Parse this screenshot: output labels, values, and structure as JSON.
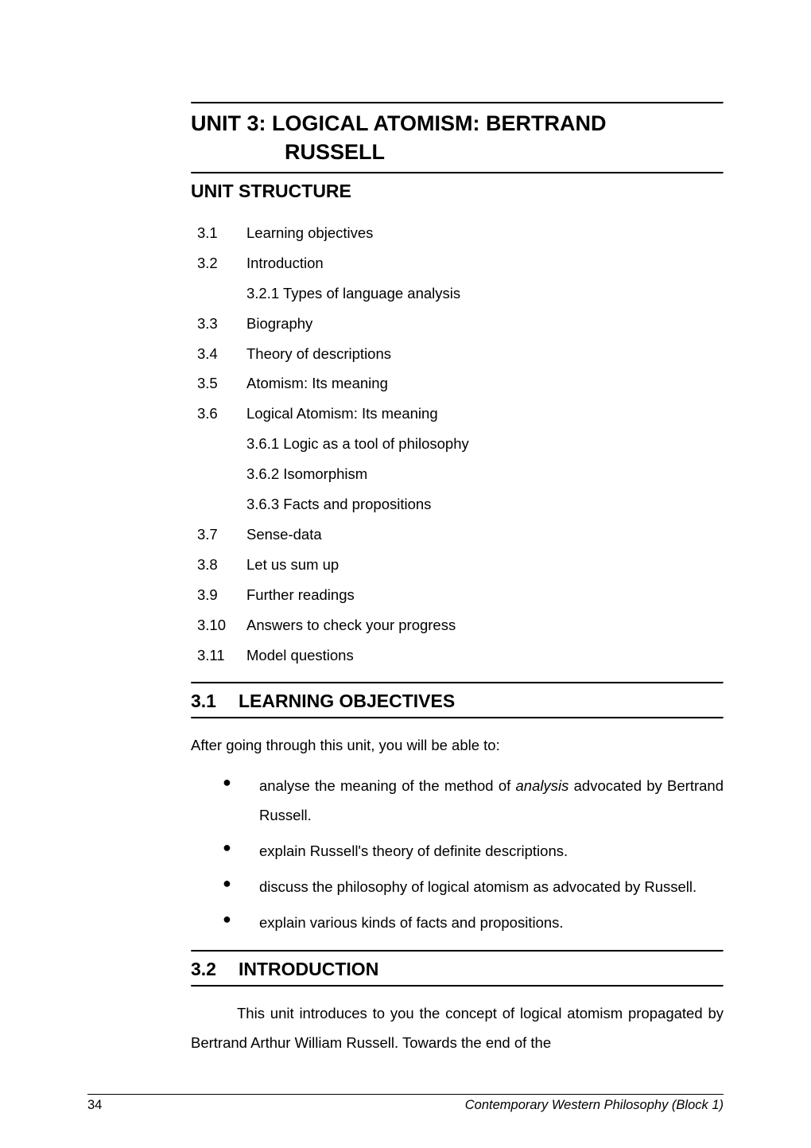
{
  "unit": {
    "title_line1": "UNIT 3:  LOGICAL ATOMISM: BERTRAND",
    "title_line2": "RUSSELL"
  },
  "structure": {
    "heading": "UNIT  STRUCTURE",
    "items": [
      {
        "num": "3.1",
        "label": "Learning objectives"
      },
      {
        "num": "3.2",
        "label": "Introduction"
      },
      {
        "num": "",
        "label": "3.2.1  Types of language analysis",
        "sub": true
      },
      {
        "num": "3.3",
        "label": "Biography"
      },
      {
        "num": "3.4",
        "label": "Theory of descriptions"
      },
      {
        "num": "3.5",
        "label": "Atomism: Its meaning"
      },
      {
        "num": "3.6",
        "label": "Logical Atomism: Its meaning"
      },
      {
        "num": "",
        "label": "3.6.1  Logic as a tool of philosophy",
        "sub": true
      },
      {
        "num": "",
        "label": "3.6.2  Isomorphism",
        "sub": true
      },
      {
        "num": "",
        "label": "3.6.3  Facts and propositions",
        "sub": true
      },
      {
        "num": "3.7",
        "label": "Sense-data"
      },
      {
        "num": "3.8",
        "label": "Let us sum up"
      },
      {
        "num": "3.9",
        "label": "Further readings"
      },
      {
        "num": "3.10",
        "label": "Answers to check your progress"
      },
      {
        "num": "3.11",
        "label": "Model questions"
      }
    ]
  },
  "sec31": {
    "num": "3.1",
    "heading": "LEARNING  OBJECTIVES",
    "intro": "After going through this unit, you will be able to:",
    "bullets": [
      {
        "pre": "analyse the meaning of the method of ",
        "em": "analysis",
        "post": " advocated by Bertrand Russell."
      },
      {
        "pre": "explain Russell's theory of definite descriptions.",
        "em": "",
        "post": ""
      },
      {
        "pre": "discuss the philosophy of logical atomism as advocated by Russell.",
        "em": "",
        "post": ""
      },
      {
        "pre": "explain various kinds of facts and propositions.",
        "em": "",
        "post": ""
      }
    ]
  },
  "sec32": {
    "num": "3.2",
    "heading": "INTRODUCTION",
    "para": "This unit introduces to you the concept of logical atomism propagated by Bertrand Arthur William Russell. Towards the end of the"
  },
  "footer": {
    "page_num": "34",
    "book": "Contemporary Western Philosophy (Block 1)"
  },
  "colors": {
    "text": "#000000",
    "background": "#ffffff",
    "rule": "#000000"
  },
  "typography": {
    "heading_fontsize_pt": 20,
    "body_fontsize_pt": 14,
    "footer_fontsize_pt": 12,
    "font_family": "Arial"
  }
}
